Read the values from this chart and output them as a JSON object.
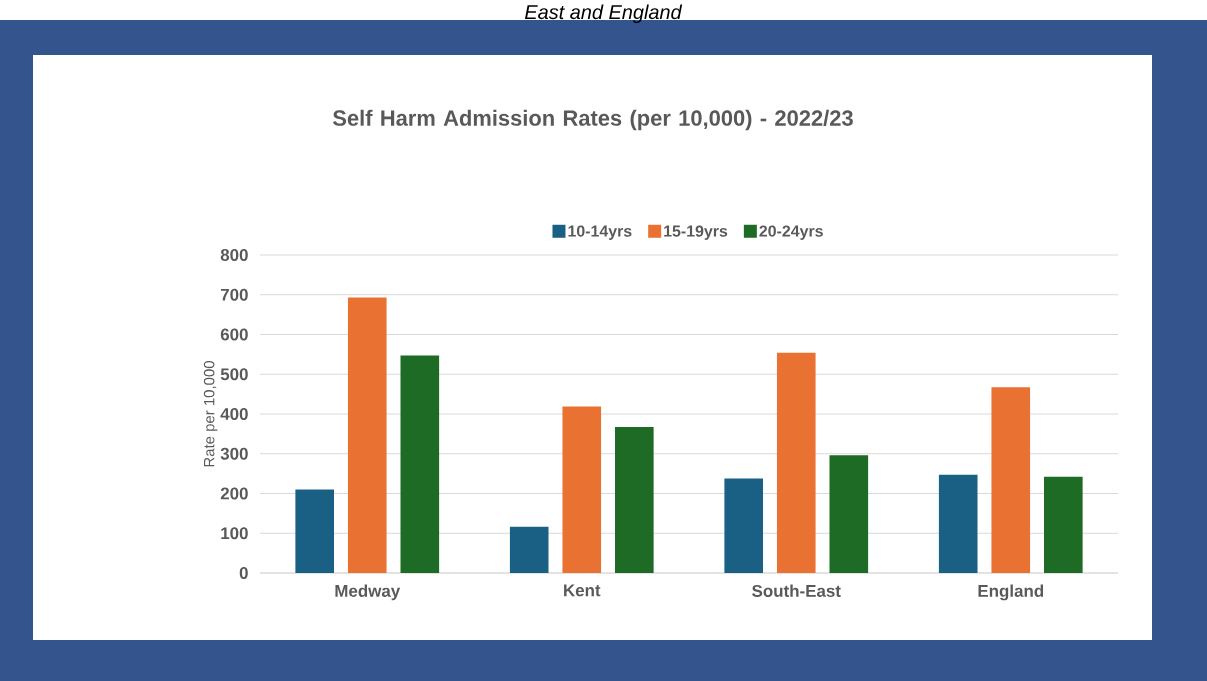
{
  "chart_data": {
    "type": "bar",
    "title": "Self Harm Admission Rates (per 10,000) - 2022/23",
    "annotations": [
      "East and England"
    ],
    "categories": [
      "Medway",
      "Kent",
      "South-East",
      "England"
    ],
    "ylabel": "Rate per 10,000",
    "series": [
      {
        "name": "10-14yrs",
        "color": "#1a6085",
        "values": [
          210,
          116,
          238,
          247
        ]
      },
      {
        "name": "15-19yrs",
        "color": "#e97132",
        "values": [
          693,
          419,
          554,
          467
        ]
      },
      {
        "name": "20-24yrs",
        "color": "#1d6b24",
        "values": [
          547,
          367,
          296,
          242
        ]
      }
    ],
    "ylim": [
      0,
      800
    ],
    "yticks": [
      0,
      100,
      200,
      300,
      400,
      500,
      600,
      700,
      800
    ],
    "grid": "y",
    "legend": "top"
  }
}
